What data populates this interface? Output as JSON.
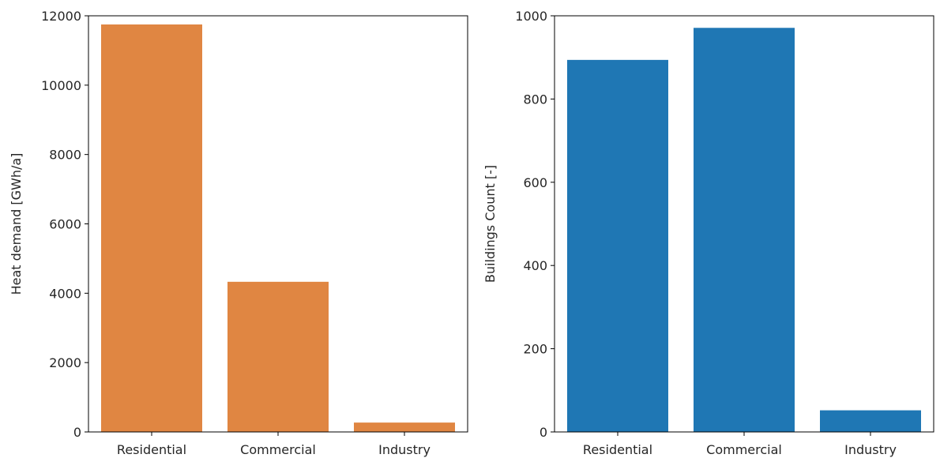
{
  "chart_data": [
    {
      "type": "bar",
      "categories": [
        "Residential",
        "Commercial",
        "Industry"
      ],
      "values": [
        11750,
        4330,
        270
      ],
      "color": "#e08642",
      "title": "",
      "xlabel": "",
      "ylabel": "Heat demand [GWh/a]",
      "ylim": [
        0,
        12000
      ],
      "yticks": [
        0,
        2000,
        4000,
        6000,
        8000,
        10000,
        12000
      ],
      "grid": false
    },
    {
      "type": "bar",
      "categories": [
        "Residential",
        "Commercial",
        "Industry"
      ],
      "values": [
        894,
        971,
        52
      ],
      "color": "#1f77b4",
      "title": "",
      "xlabel": "",
      "ylabel": "Buildings Count [-]",
      "ylim": [
        0,
        1000
      ],
      "yticks": [
        0,
        200,
        400,
        600,
        800,
        1000
      ],
      "grid": false
    }
  ]
}
